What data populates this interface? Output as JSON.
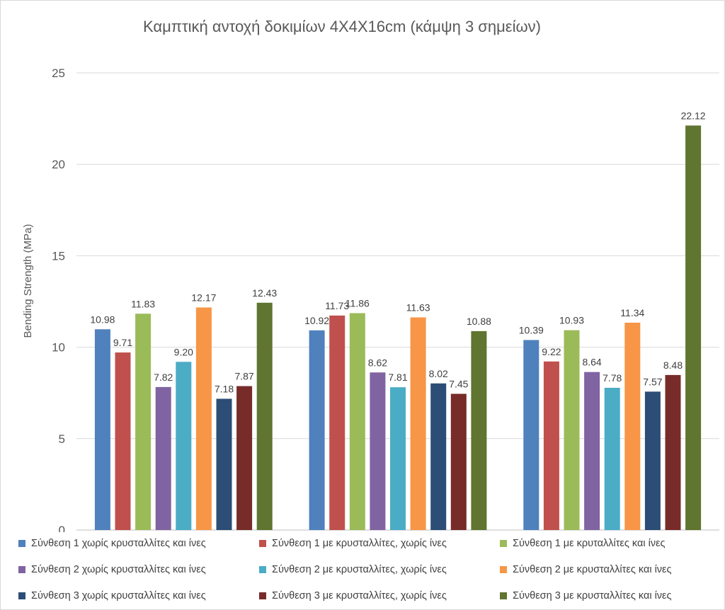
{
  "chart_data": {
    "type": "bar",
    "title": "Καμπτική αντοχή δοκιμίων 4Χ4Χ16cm (κάμψη 3 σημείων)",
    "xlabel": "",
    "ylabel": "Bending Strength (MPa)",
    "ylim": [
      0,
      25
    ],
    "yticks": [
      "0",
      "5",
      "10",
      "15",
      "20",
      "25"
    ],
    "grid": true,
    "legend_position": "bottom",
    "categories": [
      "",
      "",
      ""
    ],
    "series": [
      {
        "name": "Σύνθεση 1 χωρίς κρυσταλλίτες και ίνες",
        "color": "#4F81BD",
        "values": [
          10.98,
          10.92,
          10.39
        ],
        "labels": [
          "10.98",
          "10.92",
          "10.39"
        ]
      },
      {
        "name": "Σύνθεση 1 με κρυσταλλίτες, χωρίς ίνες",
        "color": "#C0504D",
        "values": [
          9.71,
          11.73,
          9.22
        ],
        "labels": [
          "9.71",
          "11.73",
          "9.22"
        ]
      },
      {
        "name": "Σύνθεση 1 με κρυταλλίτες και ίνες",
        "color": "#9BBB59",
        "values": [
          11.83,
          11.86,
          10.93
        ],
        "labels": [
          "11.83",
          "11.86",
          "10.93"
        ]
      },
      {
        "name": "Σύνθεση 2 χωρίς κρυσταλλίτες και ίνες",
        "color": "#8064A2",
        "values": [
          7.82,
          8.62,
          8.64
        ],
        "labels": [
          "7.82",
          "8.62",
          "8.64"
        ]
      },
      {
        "name": "Σύνθεση 2 με κρυσταλλίτες, χωρίς ίνες",
        "color": "#4BACC6",
        "values": [
          9.2,
          7.81,
          7.78
        ],
        "labels": [
          "9.20",
          "7.81",
          "7.78"
        ]
      },
      {
        "name": "Σύνθεση 2 με κρυσταλλίτες και ίνες",
        "color": "#F79646",
        "values": [
          12.17,
          11.63,
          11.34
        ],
        "labels": [
          "12.17",
          "11.63",
          "11.34"
        ]
      },
      {
        "name": "Σύνθεση 3 χωρίς κρυσταλλίτες και ίνες",
        "color": "#2C4D75",
        "values": [
          7.18,
          8.02,
          7.57
        ],
        "labels": [
          "7.18",
          "8.02",
          "7.57"
        ]
      },
      {
        "name": "Σύνθεση 3 με κρυσταλλίτες, χωρίς ίνες",
        "color": "#772C2A",
        "values": [
          7.87,
          7.45,
          8.48
        ],
        "labels": [
          "7.87",
          "7.45",
          "8.48"
        ]
      },
      {
        "name": "Σύνθεση 3 με κρυσταλλίτες και ίνες",
        "color": "#5F7530",
        "values": [
          12.43,
          10.88,
          22.12
        ],
        "labels": [
          "12.43",
          "10.88",
          "22.12"
        ]
      }
    ]
  }
}
